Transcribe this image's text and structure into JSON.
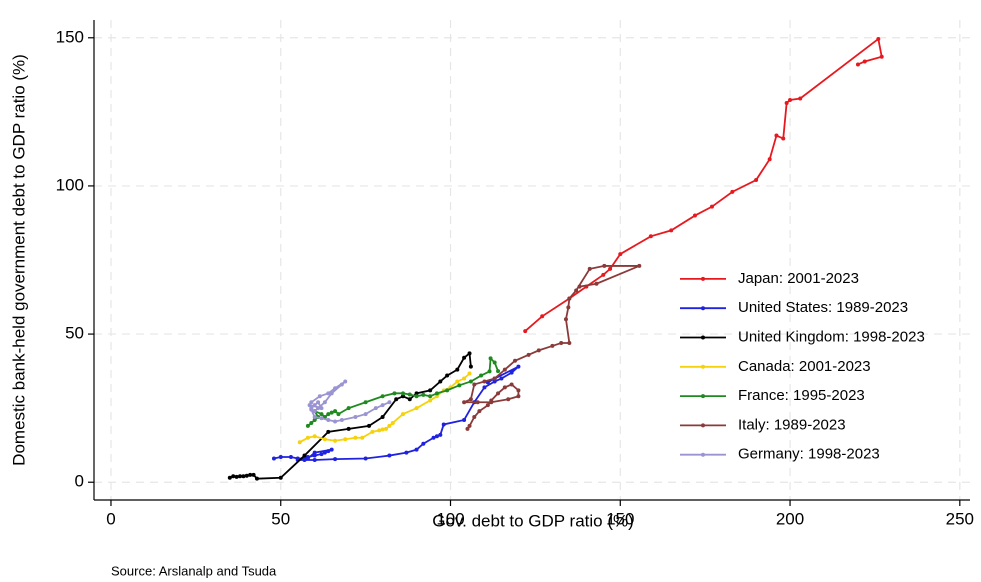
{
  "chart_data": {
    "type": "connected-scatter",
    "x_label": "Gov. debt to GDP ratio (%)",
    "y_label": "Domestic bank-held government debt to GDP ratio (%)",
    "source": "Source: Arslanalp and Tsuda",
    "xlim": [
      -5,
      253
    ],
    "ylim": [
      -6,
      156
    ],
    "xticks": [
      0,
      50,
      100,
      150,
      200,
      250
    ],
    "yticks": [
      0,
      50,
      100,
      150
    ],
    "grid": true,
    "legend": "lower right",
    "series": [
      {
        "name": "Japan: 2001-2023",
        "color": "#e8191e",
        "x": [
          122,
          127,
          135,
          140,
          145,
          147,
          150,
          159,
          165,
          172,
          177,
          183,
          190,
          194,
          196,
          198,
          199,
          200,
          203,
          226,
          227,
          222,
          220
        ],
        "values": [
          51,
          56,
          62,
          66,
          70,
          72,
          77,
          83,
          85,
          90,
          93,
          98,
          102,
          109,
          117,
          116,
          128,
          129,
          129.5,
          149.6,
          143.6,
          142,
          141
        ]
      },
      {
        "name": "United States: 1989-2023",
        "color": "#1f22e0",
        "x": [
          48,
          50,
          53,
          55,
          57,
          58,
          60,
          62,
          63,
          64,
          65,
          60,
          58,
          55,
          57,
          60,
          66,
          75,
          82,
          87,
          90,
          92,
          95,
          96,
          97,
          98,
          104,
          107,
          110,
          113,
          115,
          118,
          120,
          113,
          111
        ],
        "values": [
          8,
          8.5,
          8.5,
          8,
          8,
          8.5,
          9,
          9.5,
          10,
          10.5,
          11,
          10,
          8,
          7.5,
          7.5,
          7.5,
          7.8,
          8,
          9,
          10,
          11,
          13,
          15,
          15.5,
          16,
          19.5,
          21,
          27,
          32,
          34,
          35,
          37,
          39,
          35,
          33.7
        ]
      },
      {
        "name": "United Kingdom: 1998-2023",
        "color": "#000000",
        "x": [
          35,
          36,
          37,
          38,
          39,
          40,
          41,
          42,
          43,
          50,
          57,
          64,
          70,
          76,
          80,
          84,
          86,
          88,
          90,
          94,
          97,
          99,
          102,
          104,
          105.6,
          106
        ],
        "values": [
          1.5,
          2,
          1.8,
          2,
          2,
          2.2,
          2.5,
          2.5,
          1.2,
          1.5,
          9,
          17,
          18,
          19,
          22,
          28,
          29,
          28,
          30,
          31,
          34,
          36,
          38,
          42,
          43.5,
          39
        ]
      },
      {
        "name": "Canada: 2001-2023",
        "color": "#f5d20c",
        "x": [
          55.6,
          58,
          60,
          63,
          66,
          69,
          72,
          74,
          77,
          79,
          80,
          81,
          82,
          83,
          86,
          90,
          94,
          96,
          98,
          100,
          102,
          104,
          105.6
        ],
        "values": [
          13.5,
          15,
          15.5,
          14.5,
          14,
          14.5,
          15,
          15,
          17,
          17.5,
          17.8,
          18,
          19,
          20,
          23,
          25,
          27.6,
          29,
          31,
          32,
          34,
          35,
          36.7
        ]
      },
      {
        "name": "France: 1995-2023",
        "color": "#1f8a1f",
        "x": [
          58,
          59,
          60,
          61,
          60,
          62,
          63,
          64,
          65,
          66,
          67,
          70,
          75,
          80,
          83.5,
          86,
          88,
          90,
          92,
          94,
          96,
          99,
          102.6,
          106,
          109,
          111.5,
          111.8,
          113,
          114
        ],
        "values": [
          19,
          20,
          21,
          22,
          24,
          23,
          22,
          23,
          23.5,
          24,
          23,
          25,
          27,
          29,
          30,
          30,
          29.6,
          29,
          29.5,
          29,
          30,
          31,
          32.7,
          34,
          36,
          37.4,
          41.8,
          40.4,
          37.5
        ]
      },
      {
        "name": "Italy: 1989-2023",
        "color": "#8b3a3a",
        "x": [
          105,
          105.6,
          107,
          108.5,
          111,
          112,
          114,
          116,
          118,
          120,
          120,
          117,
          112,
          108,
          104,
          106,
          107,
          110,
          113,
          116,
          119,
          123,
          126,
          130,
          132.6,
          135,
          134,
          134.7,
          135,
          137,
          141,
          145.3,
          155.6,
          143,
          138
        ],
        "values": [
          18,
          19,
          22,
          24,
          26,
          27.6,
          30,
          32,
          33,
          31,
          29,
          28,
          27,
          27,
          27,
          28,
          33,
          34,
          35,
          38,
          41,
          43,
          44.5,
          46,
          47,
          47,
          55,
          59,
          62,
          64.7,
          72,
          73,
          73,
          67,
          66
        ]
      },
      {
        "name": "Germany: 1998-2023",
        "color": "#9a94d2",
        "x": [
          59,
          60,
          61,
          62,
          58.5,
          59,
          61.5,
          64,
          66,
          69,
          68,
          65,
          63,
          61,
          60,
          59,
          60,
          62,
          64,
          66,
          68,
          72,
          75,
          78,
          80,
          82
        ],
        "values": [
          25,
          26,
          27,
          25,
          26,
          27,
          29,
          30,
          31.7,
          34,
          33,
          30,
          27,
          25,
          24,
          24.5,
          22,
          21.6,
          21,
          20.5,
          21,
          22,
          23,
          25,
          26,
          27
        ]
      }
    ]
  }
}
